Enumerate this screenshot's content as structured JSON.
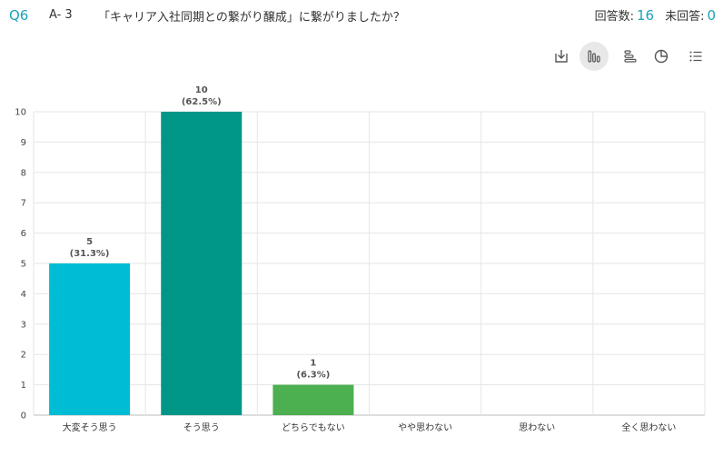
{
  "question": {
    "number": "Q6",
    "code": "A- 3",
    "title": "「キャリア入社同期との繋がり醸成」に繋がりましたか？"
  },
  "stats": {
    "answered_label": "回答数:",
    "answered_value": "16",
    "unanswered_label": "未回答:",
    "unanswered_value": "0"
  },
  "toolbar": {
    "icons": [
      "download-icon",
      "bar-chart-icon",
      "horizontal-bar-icon",
      "pie-chart-icon",
      "list-icon"
    ],
    "active": "bar-chart-icon",
    "active_color": "#e8e8e8"
  },
  "chart_data": {
    "type": "bar",
    "categories": [
      "大変そう思う",
      "そう思う",
      "どちらでもない",
      "やや思わない",
      "思わない",
      "全く思わない"
    ],
    "values": [
      5,
      10,
      1,
      0,
      0,
      0
    ],
    "percent_labels": [
      "(31.3%)",
      "(62.5%)",
      "(6.3%)",
      "",
      "",
      ""
    ],
    "colors": [
      "#00bcd4",
      "#009688",
      "#4caf50",
      "#cddc39",
      "#ffc107",
      "#ff5722"
    ],
    "ylim": [
      0,
      10
    ],
    "yticks": [
      0,
      1,
      2,
      3,
      4,
      5,
      6,
      7,
      8,
      9,
      10
    ],
    "grid": true,
    "xlabel": "",
    "ylabel": ""
  }
}
